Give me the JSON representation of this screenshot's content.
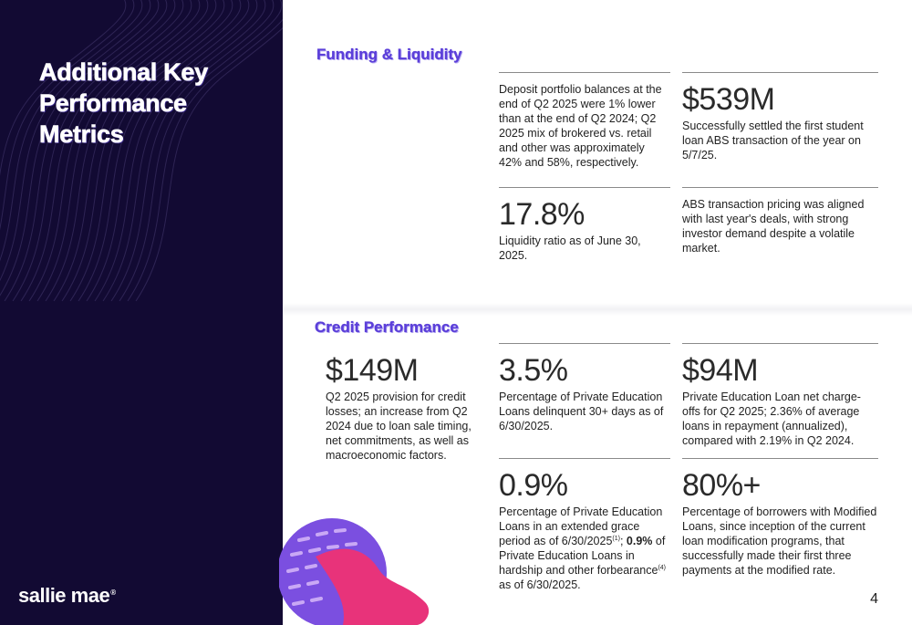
{
  "sidebar": {
    "title": "Additional Key Performance Metrics",
    "logo_text": "sallie mae",
    "logo_mark": "®"
  },
  "funding": {
    "section_title": "Funding & Liquidity",
    "deposit_desc": "Deposit portfolio balances at the end of Q2 2025 were 1% lower than at the end of Q2 2024; Q2 2025 mix of brokered vs. retail and other was approximately 42% and 58%, respectively.",
    "abs_value": "$539M",
    "abs_desc": "Successfully settled the first student loan ABS transaction of the year on 5/7/25.",
    "liquidity_value": "17.8%",
    "liquidity_desc": "Liquidity ratio as of June 30, 2025.",
    "pricing_desc": "ABS transaction pricing was aligned with last year's deals, with strong investor demand despite a volatile market."
  },
  "credit": {
    "section_title": "Credit Performance",
    "provision_value": "$149M",
    "provision_desc": "Q2 2025 provision for credit losses; an increase from Q2 2024 due to loan sale timing, net commitments, as well as macroeconomic factors.",
    "delinquent_value": "3.5%",
    "delinquent_desc": "Percentage of Private Education Loans delinquent 30+ days as of 6/30/2025.",
    "chargeoff_value": "$94M",
    "chargeoff_desc": "Private Education Loan net charge-offs for Q2 2025; 2.36% of average loans in repayment (annualized), compared with 2.19% in Q2 2024.",
    "grace_value": "0.9%",
    "grace_desc_1": "Percentage of Private Education Loans in an extended grace period as of 6/30/2025",
    "grace_sup_1": "(1)",
    "grace_desc_2": "; ",
    "grace_bold": "0.9%",
    "grace_desc_3": " of Private Education Loans in hardship and other forbearance",
    "grace_sup_2": "(4)",
    "grace_desc_4": " as of 6/30/2025.",
    "modified_value": "80%+",
    "modified_desc": "Percentage of borrowers with Modified Loans, since inception of the current loan modification programs, that successfully made their first three payments at the modified rate."
  },
  "footer": {
    "page_number": "4"
  },
  "colors": {
    "sidebar_bg": "#120a33",
    "heading_purple": "#5b3fd9",
    "accent_pink": "#e8337a",
    "accent_violet": "#7b4fe0"
  }
}
